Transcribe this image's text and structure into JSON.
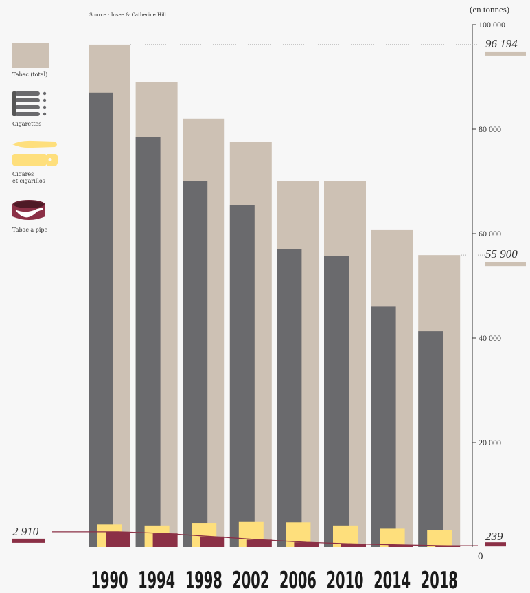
{
  "source": "Source : Insee & Catherine Hill",
  "unit": "(en tonnes)",
  "colors": {
    "total": "#cdc1b4",
    "cigarettes": "#6a6a6d",
    "cigares": "#fedf7c",
    "pipe": "#8b3046",
    "axis": "#333333"
  },
  "legend": [
    {
      "label": "Tabac (total)",
      "icon": "tobacco-swatch-icon"
    },
    {
      "label": "Cigarettes",
      "icon": "cigarettes-icon"
    },
    {
      "label_lines": [
        "Cigares",
        "et cigarillos"
      ],
      "icon": "cigars-icon"
    },
    {
      "label": "Tabac à pipe",
      "icon": "pipe-tobacco-icon"
    }
  ],
  "chart_data": {
    "type": "bar",
    "categories": [
      "1990",
      "1994",
      "1998",
      "2002",
      "2006",
      "2010",
      "2014",
      "2018"
    ],
    "series": [
      {
        "name": "Tabac (total)",
        "values": [
          96194,
          89000,
          82000,
          77500,
          70000,
          70000,
          60800,
          55900
        ]
      },
      {
        "name": "Cigarettes",
        "values": [
          87000,
          78500,
          70000,
          65500,
          57000,
          55700,
          46000,
          41300
        ]
      },
      {
        "name": "Cigares et cigarillos",
        "values": [
          4300,
          4100,
          4600,
          4900,
          4700,
          4100,
          3500,
          3200
        ]
      },
      {
        "name": "Tabac à pipe",
        "values": [
          2910,
          2600,
          2000,
          1400,
          900,
          600,
          400,
          239
        ]
      }
    ],
    "yticks": [
      {
        "value": 100000,
        "label": "100 000"
      },
      {
        "value": 80000,
        "label": "80 000"
      },
      {
        "value": 60000,
        "label": "60 000"
      },
      {
        "value": 40000,
        "label": "40 000"
      },
      {
        "value": 20000,
        "label": "20 000"
      },
      {
        "value": 0,
        "label": "0"
      }
    ],
    "ylim": [
      0,
      100000
    ],
    "annotations": [
      {
        "value": 96194,
        "label": "96 194"
      },
      {
        "value": 55900,
        "label": "55 900"
      },
      {
        "value": 2910,
        "label": "2 910"
      },
      {
        "value": 239,
        "label": "239"
      }
    ]
  }
}
